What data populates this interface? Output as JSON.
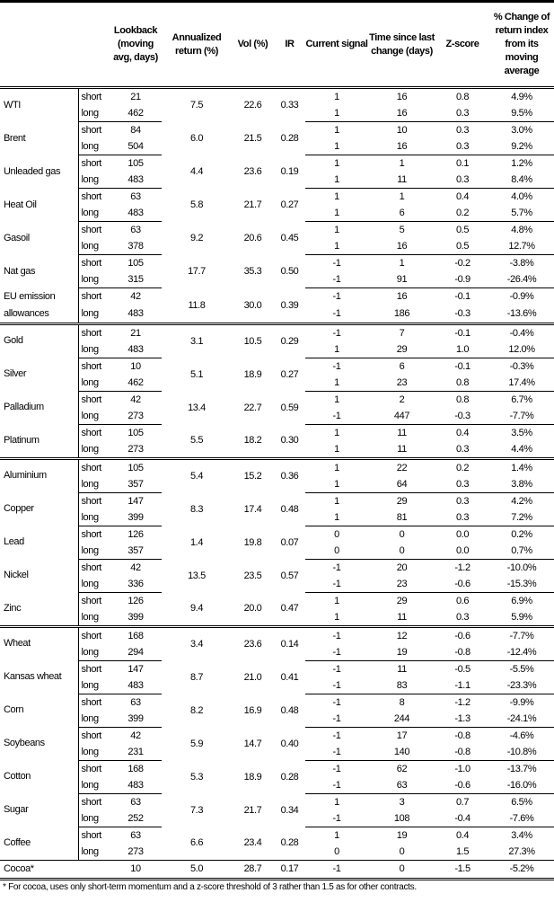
{
  "headers": [
    "",
    "",
    "Lookback (moving avg, days)",
    "Annualized return (%)",
    "Vol (%)",
    "IR",
    "Current signal",
    "Time since last change (days)",
    "Z-score",
    "% Change of return index from its moving average"
  ],
  "rows": [
    {
      "name": "WTI",
      "ann": "7.5",
      "vol": "22.6",
      "ir": "0.33",
      "short": [
        "21",
        "1",
        "16",
        "0.8",
        "4.9%"
      ],
      "long": [
        "462",
        "1",
        "16",
        "0.3",
        "9.5%"
      ]
    },
    {
      "name": "Brent",
      "ann": "6.0",
      "vol": "21.5",
      "ir": "0.28",
      "short": [
        "84",
        "1",
        "10",
        "0.3",
        "3.0%"
      ],
      "long": [
        "504",
        "1",
        "16",
        "0.3",
        "9.2%"
      ]
    },
    {
      "name": "Unleaded gas",
      "ann": "4.4",
      "vol": "23.6",
      "ir": "0.19",
      "short": [
        "105",
        "1",
        "1",
        "0.1",
        "1.2%"
      ],
      "long": [
        "483",
        "1",
        "11",
        "0.3",
        "8.4%"
      ]
    },
    {
      "name": "Heat Oil",
      "ann": "5.8",
      "vol": "21.7",
      "ir": "0.27",
      "short": [
        "63",
        "1",
        "1",
        "0.4",
        "4.0%"
      ],
      "long": [
        "483",
        "1",
        "6",
        "0.2",
        "5.7%"
      ]
    },
    {
      "name": "Gasoil",
      "ann": "9.2",
      "vol": "20.6",
      "ir": "0.45",
      "short": [
        "63",
        "1",
        "5",
        "0.5",
        "4.8%"
      ],
      "long": [
        "378",
        "1",
        "16",
        "0.5",
        "12.7%"
      ]
    },
    {
      "name": "Nat gas",
      "ann": "17.7",
      "vol": "35.3",
      "ir": "0.50",
      "short": [
        "105",
        "-1",
        "1",
        "-0.2",
        "-3.8%"
      ],
      "long": [
        "315",
        "-1",
        "91",
        "-0.9",
        "-26.4%"
      ]
    },
    {
      "name": "EU emission allowances",
      "ann": "11.8",
      "vol": "30.0",
      "ir": "0.39",
      "short": [
        "42",
        "-1",
        "16",
        "-0.1",
        "-0.9%"
      ],
      "long": [
        "483",
        "-1",
        "186",
        "-0.3",
        "-13.6%"
      ]
    },
    {
      "name": "Gold",
      "group": true,
      "ann": "3.1",
      "vol": "10.5",
      "ir": "0.29",
      "short": [
        "21",
        "-1",
        "7",
        "-0.1",
        "-0.4%"
      ],
      "long": [
        "483",
        "1",
        "29",
        "1.0",
        "12.0%"
      ]
    },
    {
      "name": "Silver",
      "ann": "5.1",
      "vol": "18.9",
      "ir": "0.27",
      "short": [
        "10",
        "-1",
        "6",
        "-0.1",
        "-0.3%"
      ],
      "long": [
        "462",
        "1",
        "23",
        "0.8",
        "17.4%"
      ]
    },
    {
      "name": "Palladium",
      "ann": "13.4",
      "vol": "22.7",
      "ir": "0.59",
      "short": [
        "42",
        "1",
        "2",
        "0.8",
        "6.7%"
      ],
      "long": [
        "273",
        "-1",
        "447",
        "-0.3",
        "-7.7%"
      ]
    },
    {
      "name": "Platinum",
      "ann": "5.5",
      "vol": "18.2",
      "ir": "0.30",
      "short": [
        "105",
        "1",
        "11",
        "0.4",
        "3.5%"
      ],
      "long": [
        "273",
        "1",
        "11",
        "0.3",
        "4.4%"
      ]
    },
    {
      "name": "Aluminium",
      "group": true,
      "ann": "5.4",
      "vol": "15.2",
      "ir": "0.36",
      "short": [
        "105",
        "1",
        "22",
        "0.2",
        "1.4%"
      ],
      "long": [
        "357",
        "1",
        "64",
        "0.3",
        "3.8%"
      ]
    },
    {
      "name": "Copper",
      "ann": "8.3",
      "vol": "17.4",
      "ir": "0.48",
      "short": [
        "147",
        "1",
        "29",
        "0.3",
        "4.2%"
      ],
      "long": [
        "399",
        "1",
        "81",
        "0.3",
        "7.2%"
      ]
    },
    {
      "name": "Lead",
      "ann": "1.4",
      "vol": "19.8",
      "ir": "0.07",
      "short": [
        "126",
        "0",
        "0",
        "0.0",
        "0.2%"
      ],
      "long": [
        "357",
        "0",
        "0",
        "0.0",
        "0.7%"
      ]
    },
    {
      "name": "Nickel",
      "ann": "13.5",
      "vol": "23.5",
      "ir": "0.57",
      "short": [
        "42",
        "-1",
        "20",
        "-1.2",
        "-10.0%"
      ],
      "long": [
        "336",
        "-1",
        "23",
        "-0.6",
        "-15.3%"
      ]
    },
    {
      "name": "Zinc",
      "ann": "9.4",
      "vol": "20.0",
      "ir": "0.47",
      "short": [
        "126",
        "1",
        "29",
        "0.6",
        "6.9%"
      ],
      "long": [
        "399",
        "1",
        "11",
        "0.3",
        "5.9%"
      ]
    },
    {
      "name": "Wheat",
      "group": true,
      "ann": "3.4",
      "vol": "23.6",
      "ir": "0.14",
      "short": [
        "168",
        "-1",
        "12",
        "-0.6",
        "-7.7%"
      ],
      "long": [
        "294",
        "-1",
        "19",
        "-0.8",
        "-12.4%"
      ]
    },
    {
      "name": "Kansas wheat",
      "ann": "8.7",
      "vol": "21.0",
      "ir": "0.41",
      "short": [
        "147",
        "-1",
        "11",
        "-0.5",
        "-5.5%"
      ],
      "long": [
        "483",
        "-1",
        "83",
        "-1.1",
        "-23.3%"
      ]
    },
    {
      "name": "Corn",
      "ann": "8.2",
      "vol": "16.9",
      "ir": "0.48",
      "short": [
        "63",
        "-1",
        "8",
        "-1.2",
        "-9.9%"
      ],
      "long": [
        "399",
        "-1",
        "244",
        "-1.3",
        "-24.1%"
      ]
    },
    {
      "name": "Soybeans",
      "ann": "5.9",
      "vol": "14.7",
      "ir": "0.40",
      "short": [
        "42",
        "-1",
        "17",
        "-0.8",
        "-4.6%"
      ],
      "long": [
        "231",
        "-1",
        "140",
        "-0.8",
        "-10.8%"
      ]
    },
    {
      "name": "Cotton",
      "ann": "5.3",
      "vol": "18.9",
      "ir": "0.28",
      "short": [
        "168",
        "-1",
        "62",
        "-1.0",
        "-13.7%"
      ],
      "long": [
        "483",
        "-1",
        "63",
        "-0.6",
        "-16.0%"
      ]
    },
    {
      "name": "Sugar",
      "ann": "7.3",
      "vol": "21.7",
      "ir": "0.34",
      "short": [
        "63",
        "1",
        "3",
        "0.7",
        "6.5%"
      ],
      "long": [
        "252",
        "-1",
        "108",
        "-0.4",
        "-7.6%"
      ]
    },
    {
      "name": "Coffee",
      "ann": "6.6",
      "vol": "23.4",
      "ir": "0.28",
      "short": [
        "63",
        "1",
        "19",
        "0.4",
        "3.4%"
      ],
      "long": [
        "273",
        "0",
        "0",
        "1.5",
        "27.3%"
      ]
    }
  ],
  "labels": {
    "short": "short",
    "long": "long"
  },
  "cocoa": {
    "name": "Cocoa*",
    "lookback": "10",
    "ann": "5.0",
    "vol": "28.7",
    "ir": "0.17",
    "signal": "-1",
    "time": "0",
    "z": "-1.5",
    "pct": "-5.2%"
  },
  "footnote": "* For cocoa, uses only short-term momentum and a z-score threshold of 3 rather than 1.5 as for other contracts."
}
